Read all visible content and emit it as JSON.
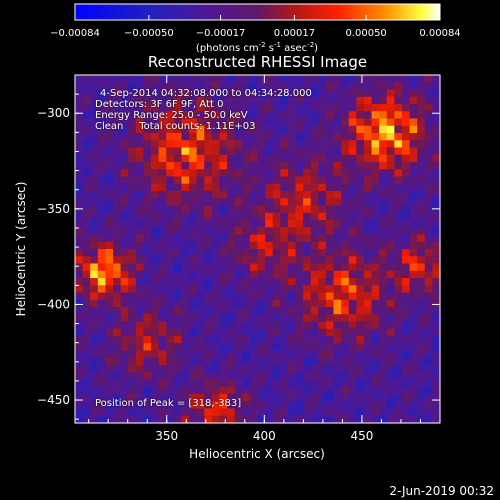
{
  "chart_data": {
    "type": "heatmap",
    "title": "Reconstructed RHESSI Image",
    "xlabel": "Heliocentric X (arcsec)",
    "ylabel": "Heliocentric Y (arcsec)",
    "xlim": [
      303,
      490
    ],
    "ylim": [
      -462,
      -280
    ],
    "x_ticks": [
      350,
      400,
      450
    ],
    "y_ticks": [
      -450,
      -400,
      -350,
      -300
    ],
    "colorbar": {
      "ticks": [
        "-0.00084",
        "-0.00050",
        "-0.00017",
        "0.00017",
        "0.00050",
        "0.00084"
      ],
      "range": [
        -0.00084,
        0.00084
      ],
      "label_prefix": "(photons cm",
      "label_exp1": "-2",
      "label_mid": " s",
      "label_exp2": "-1",
      "label_mid2": " asec",
      "label_exp3": "-2",
      "label_suffix": ")"
    },
    "annotations": {
      "time_range": "4-Sep-2014 04:32:08.000 to 04:34:28.000",
      "detectors": "Detectors: 3F 6F 9F, Att 0",
      "energy": "Energy Range: 25.0 - 50.0 keV",
      "clean": "Clean     Total counts: 1.11E+03",
      "peak": "Position of Peak = [318,-383]"
    },
    "peak_position": [
      318,
      -383
    ],
    "bright_sources": [
      {
        "x": 462,
        "y": -310,
        "peak": 1.0,
        "sigma": 14
      },
      {
        "x": 318,
        "y": -383,
        "peak": 1.0,
        "sigma": 10
      },
      {
        "x": 360,
        "y": -320,
        "peak": 0.75,
        "sigma": 18
      },
      {
        "x": 440,
        "y": -395,
        "peak": 0.7,
        "sigma": 16
      },
      {
        "x": 375,
        "y": -455,
        "peak": 0.65,
        "sigma": 10
      },
      {
        "x": 420,
        "y": -345,
        "peak": 0.55,
        "sigma": 14
      },
      {
        "x": 340,
        "y": -420,
        "peak": 0.5,
        "sigma": 12
      },
      {
        "x": 480,
        "y": -380,
        "peak": 0.6,
        "sigma": 10
      },
      {
        "x": 400,
        "y": -370,
        "peak": 0.45,
        "sigma": 12
      }
    ]
  },
  "footer": {
    "date": "2-Jun-2019 00:32"
  }
}
